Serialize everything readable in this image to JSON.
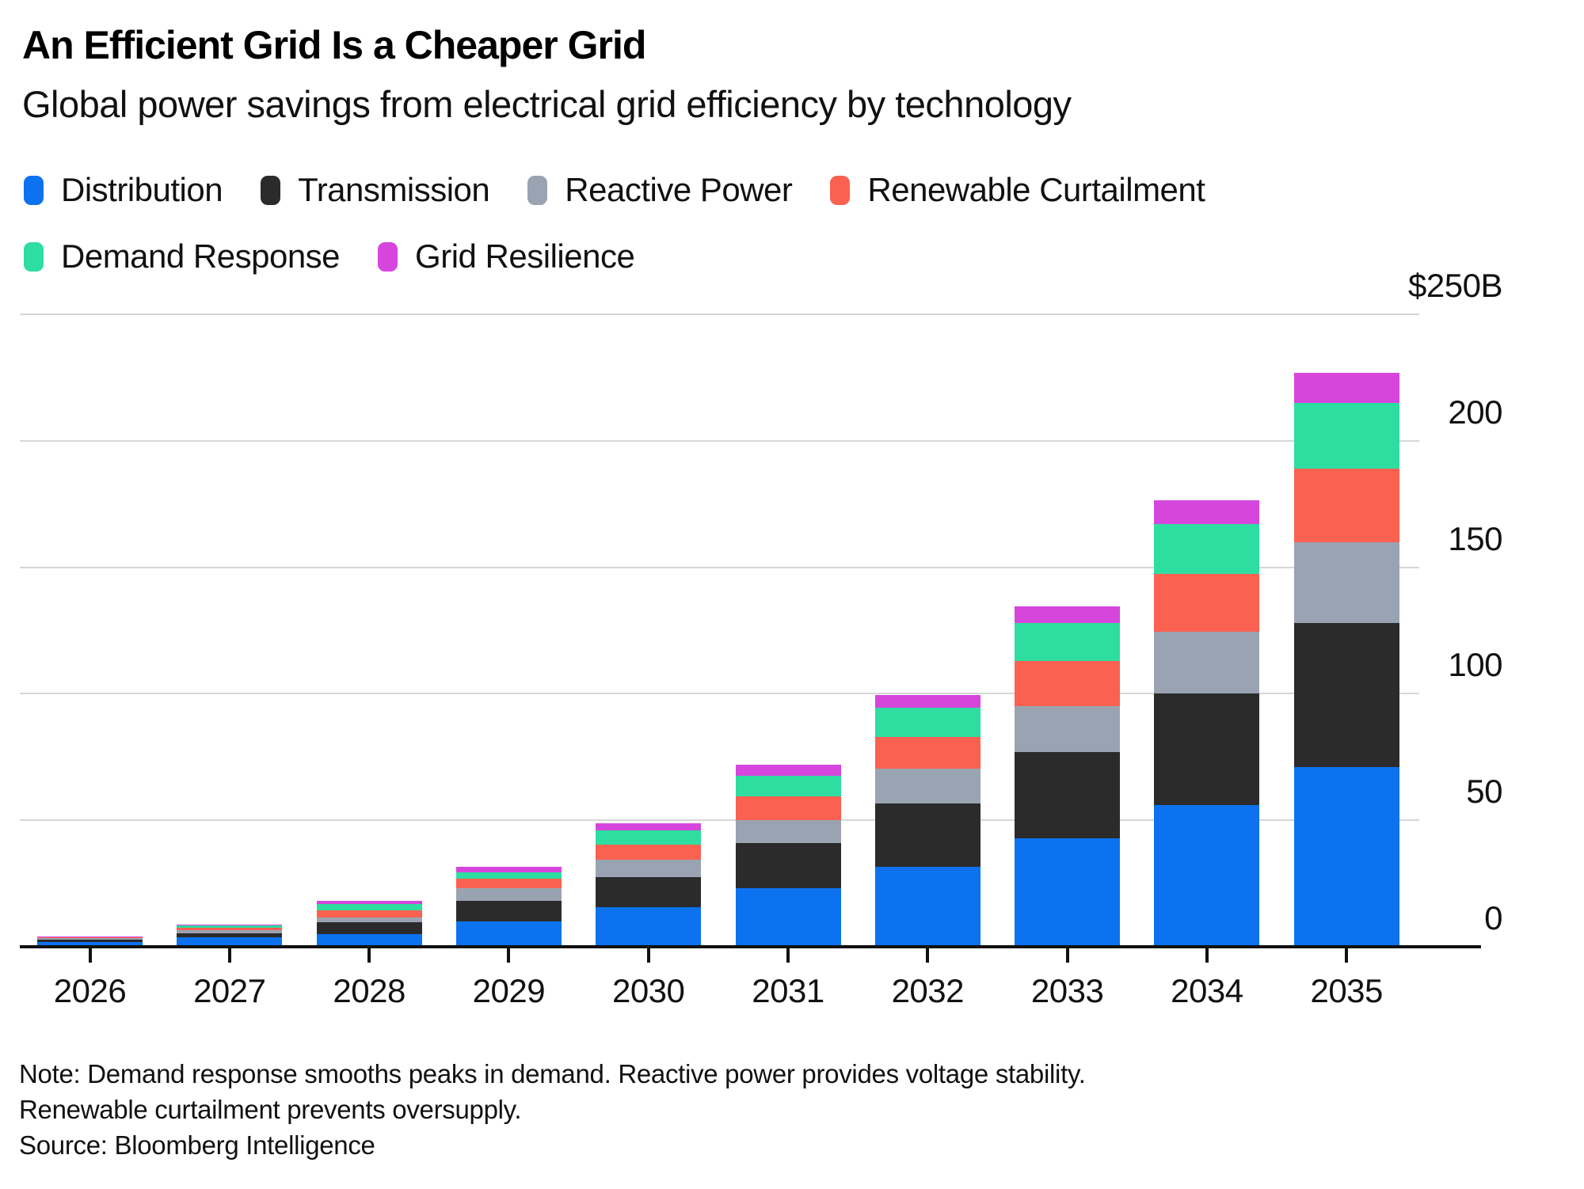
{
  "header": {
    "title": "An Efficient Grid Is a Cheaper Grid",
    "subtitle": "Global power savings from electrical grid efficiency by technology"
  },
  "legend": {
    "row_break": 4,
    "items": [
      {
        "label": "Distribution",
        "color": "#0c72f0"
      },
      {
        "label": "Transmission",
        "color": "#2b2b2b"
      },
      {
        "label": "Reactive Power",
        "color": "#9aa3b2"
      },
      {
        "label": "Renewable Curtailment",
        "color": "#fa6150"
      },
      {
        "label": "Demand Response",
        "color": "#2edda0"
      },
      {
        "label": "Grid Resilience",
        "color": "#d646dd"
      }
    ]
  },
  "chart_data": {
    "type": "bar",
    "stacked": true,
    "unit": "USD billions",
    "title": "Global power savings from electrical grid efficiency by technology",
    "categories": [
      "2026",
      "2027",
      "2028",
      "2029",
      "2030",
      "2031",
      "2032",
      "2033",
      "2034",
      "2035"
    ],
    "series": [
      {
        "name": "Distribution",
        "color": "#0c72f0",
        "values": [
          2,
          3.6,
          5,
          10,
          15.5,
          23,
          31.5,
          43,
          56,
          71
        ]
      },
      {
        "name": "Transmission",
        "color": "#2b2b2b",
        "values": [
          0.7,
          1.8,
          4.8,
          8,
          12,
          18,
          25,
          34,
          44,
          57
        ]
      },
      {
        "name": "Reactive Power",
        "color": "#9aa3b2",
        "values": [
          0.9,
          1.1,
          1.7,
          5.3,
          7,
          9,
          14,
          18,
          24.5,
          32
        ]
      },
      {
        "name": "Renewable Curtailment",
        "color": "#fa6150",
        "values": [
          0.2,
          1.0,
          2.9,
          3.5,
          6,
          9.5,
          12.5,
          18,
          23,
          29
        ]
      },
      {
        "name": "Demand Response",
        "color": "#2edda0",
        "values": [
          0.15,
          0.9,
          2.6,
          2.5,
          5.5,
          8,
          11.5,
          15,
          19.5,
          26
        ]
      },
      {
        "name": "Grid Resilience",
        "color": "#d646dd",
        "values": [
          0.05,
          0.3,
          1.1,
          2.2,
          2.7,
          4.5,
          5,
          6.5,
          9.5,
          12
        ]
      }
    ],
    "ylim": [
      0,
      250
    ],
    "yticks": [
      {
        "value": 0,
        "label": "0"
      },
      {
        "value": 50,
        "label": "50"
      },
      {
        "value": 100,
        "label": "100"
      },
      {
        "value": 150,
        "label": "150"
      },
      {
        "value": 200,
        "label": "200"
      },
      {
        "value": 250,
        "label": "$250B"
      }
    ],
    "grid": "horizontal",
    "legend_position": "top"
  },
  "footer": {
    "note": "Note: Demand response smooths peaks in demand. Reactive power provides voltage stability. Renewable curtailment prevents oversupply.",
    "source": "Source: Bloomberg Intelligence"
  }
}
